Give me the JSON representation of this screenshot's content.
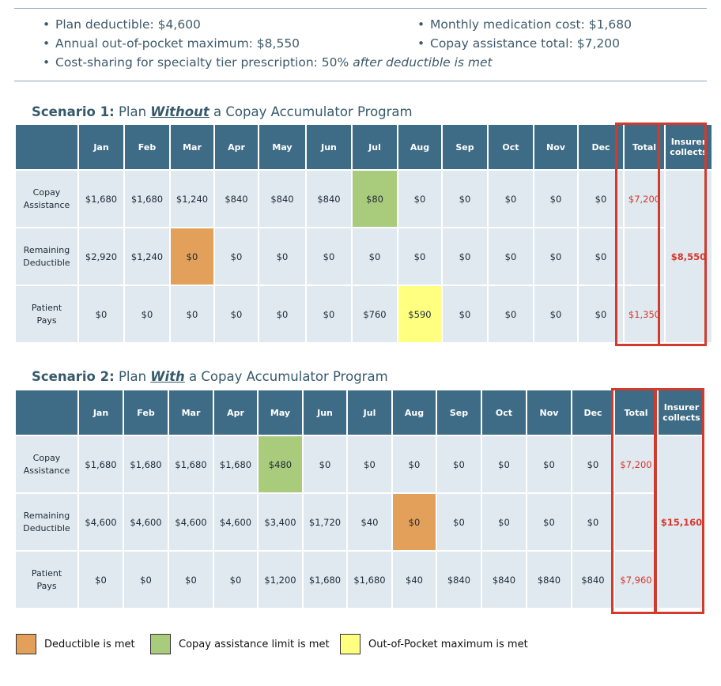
{
  "bullets": {
    "deductible": "Plan deductible: $4,600",
    "oop_max": "Annual out-of-pocket maximum: $8,550",
    "cost_sharing_prefix": "Cost-sharing for specialty tier prescription: 50% ",
    "cost_sharing_emph": "after deductible is met",
    "monthly_cost": "Monthly medication cost: $1,680",
    "copay_total": "Copay assistance total: $7,200"
  },
  "months": [
    "Jan",
    "Feb",
    "Mar",
    "Apr",
    "May",
    "Jun",
    "Jul",
    "Aug",
    "Sep",
    "Oct",
    "Nov",
    "Dec"
  ],
  "total_header": "Total",
  "insurer_header_line1": "Insurer",
  "insurer_header_line2": "collects",
  "scenario1": {
    "title_bold": "Scenario 1:",
    "title_pre": " Plan ",
    "title_emph": "Without",
    "title_post": " a Copay Accumulator Program",
    "rows": [
      {
        "label1": "Copay",
        "label2": "Assistance",
        "values": [
          "$1,680",
          "$1,680",
          "$1,240",
          "$840",
          "$840",
          "$840",
          "$80",
          "$0",
          "$0",
          "$0",
          "$0",
          "$0"
        ],
        "total": "$7,200"
      },
      {
        "label1": "Remaining",
        "label2": "Deductible",
        "values": [
          "$2,920",
          "$1,240",
          "$0",
          "$0",
          "$0",
          "$0",
          "$0",
          "$0",
          "$0",
          "$0",
          "$0",
          "$0"
        ],
        "total": ""
      },
      {
        "label1": "Patient",
        "label2": "Pays",
        "values": [
          "$0",
          "$0",
          "$0",
          "$0",
          "$0",
          "$0",
          "$760",
          "$590",
          "$0",
          "$0",
          "$0",
          "$0"
        ],
        "total": "$1,350"
      }
    ],
    "insurer_collects": "$8,550"
  },
  "scenario2": {
    "title_bold": "Scenario 2:",
    "title_pre": " Plan ",
    "title_emph": "With",
    "title_post": " a Copay Accumulator Program",
    "rows": [
      {
        "label1": "Copay",
        "label2": "Assistance",
        "values": [
          "$1,680",
          "$1,680",
          "$1,680",
          "$1,680",
          "$480",
          "$0",
          "$0",
          "$0",
          "$0",
          "$0",
          "$0",
          "$0"
        ],
        "total": "$7,200"
      },
      {
        "label1": "Remaining",
        "label2": "Deductible",
        "values": [
          "$4,600",
          "$4,600",
          "$4,600",
          "$4,600",
          "$3,400",
          "$1,720",
          "$40",
          "$0",
          "$0",
          "$0",
          "$0",
          "$0"
        ],
        "total": ""
      },
      {
        "label1": "Patient",
        "label2": "Pays",
        "values": [
          "$0",
          "$0",
          "$0",
          "$0",
          "$1,200",
          "$1,680",
          "$1,680",
          "$40",
          "$840",
          "$840",
          "$840",
          "$840"
        ],
        "total": "$7,960"
      }
    ],
    "insurer_collects": "$15,160"
  },
  "legend": {
    "deductible_met": "Deductible is met",
    "copay_limit_met": "Copay assistance limit is met",
    "oop_max_met": "Out-of-Pocket maximum is met",
    "colors": {
      "orange": "#e2a05a",
      "green": "#a9cb7c",
      "yellow": "#ffff80",
      "header": "#3e6c86",
      "cell": "#dfe9ef",
      "highlight_border": "#d23a2e"
    }
  }
}
